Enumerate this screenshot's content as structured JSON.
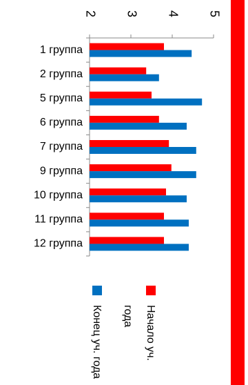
{
  "chart_data": {
    "type": "bar",
    "orientation": "horizontal",
    "categories": [
      "1 группа",
      "2 группа",
      "5 группа",
      "6 группа",
      "7 группа",
      "9 группа",
      "10 группа",
      "11 группа",
      "12 группа"
    ],
    "series": [
      {
        "name": "Начало уч. года",
        "color": "#ff0000",
        "values": [
          3.8,
          3.37,
          3.5,
          3.68,
          3.92,
          3.98,
          3.85,
          3.8,
          3.8
        ]
      },
      {
        "name": "Конец уч. года",
        "color": "#0070c0",
        "values": [
          4.47,
          3.68,
          4.72,
          4.35,
          4.58,
          4.58,
          4.35,
          4.4,
          4.4
        ]
      }
    ],
    "xlim": [
      2,
      5
    ],
    "xticks": [
      2,
      3,
      4,
      5
    ]
  }
}
